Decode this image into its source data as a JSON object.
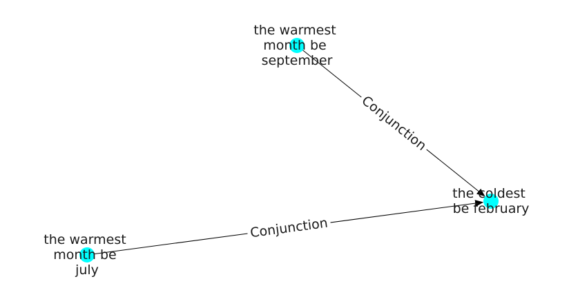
{
  "graph": {
    "node_color": "#00ffff",
    "edge_color": "#000000",
    "nodes": [
      {
        "id": "sep",
        "lines": [
          "the warmest",
          "month be",
          "september"
        ]
      },
      {
        "id": "feb",
        "lines": [
          "the coldest",
          "be february"
        ]
      },
      {
        "id": "jul",
        "lines": [
          "the warmest",
          "month be",
          "july"
        ]
      }
    ],
    "edges": [
      {
        "from": "sep",
        "to": "feb",
        "label": "Conjunction"
      },
      {
        "from": "jul",
        "to": "feb",
        "label": "Conjunction"
      }
    ]
  }
}
